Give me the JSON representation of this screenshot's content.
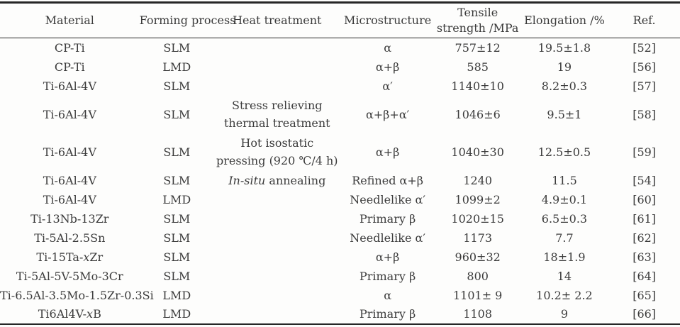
{
  "table": {
    "column_keys": [
      "material",
      "forming-process",
      "heat-treatment",
      "microstructure",
      "tensile-strength",
      "elongation",
      "ref"
    ],
    "headers": [
      "Material",
      "Forming process",
      "Heat treatment",
      "Microstructure",
      "Tensile\nstrength /MPa",
      "Elongation /%",
      "Ref."
    ],
    "rows": [
      {
        "material": "CP-Ti",
        "forming_process": "SLM",
        "heat_treatment": "",
        "microstructure": "α",
        "tensile_strength_mpa": "757±12",
        "elongation_pct": "19.5±1.8",
        "ref": "[52]",
        "tall": false
      },
      {
        "material": "CP-Ti",
        "forming_process": "LMD",
        "heat_treatment": "",
        "microstructure": "α+β",
        "tensile_strength_mpa": "585",
        "elongation_pct": "19",
        "ref": "[56]",
        "tall": false
      },
      {
        "material": "Ti-6Al-4V",
        "forming_process": "SLM",
        "heat_treatment": "",
        "microstructure": "α′",
        "tensile_strength_mpa": "1140±10",
        "elongation_pct": "8.2±0.3",
        "ref": "[57]",
        "tall": false
      },
      {
        "material": "Ti-6Al-4V",
        "forming_process": "SLM",
        "heat_treatment": "Stress relieving\nthermal treatment",
        "microstructure": "α+β+α′",
        "tensile_strength_mpa": "1046±6",
        "elongation_pct": "9.5±1",
        "ref": "[58]",
        "tall": true
      },
      {
        "material": "Ti-6Al-4V",
        "forming_process": "SLM",
        "heat_treatment": "Hot isostatic\npressing (920 ℃/4 h)",
        "microstructure": "α+β",
        "tensile_strength_mpa": "1040±30",
        "elongation_pct": "12.5±0.5",
        "ref": "[59]",
        "tall": true
      },
      {
        "material": "Ti-6Al-4V",
        "forming_process": "SLM",
        "heat_treatment": "*In-situ* annealing",
        "microstructure": "Refined α+β",
        "tensile_strength_mpa": "1240",
        "elongation_pct": "11.5",
        "ref": "[54]",
        "tall": false
      },
      {
        "material": "Ti-6Al-4V",
        "forming_process": "LMD",
        "heat_treatment": "",
        "microstructure": "Needlelike α′",
        "tensile_strength_mpa": "1099±2",
        "elongation_pct": "4.9±0.1",
        "ref": "[60]",
        "tall": false
      },
      {
        "material": "Ti-13Nb-13Zr",
        "forming_process": "SLM",
        "heat_treatment": "",
        "microstructure": "Primary β",
        "tensile_strength_mpa": "1020±15",
        "elongation_pct": "6.5±0.3",
        "ref": "[61]",
        "tall": false
      },
      {
        "material": "Ti-5Al-2.5Sn",
        "forming_process": "SLM",
        "heat_treatment": "",
        "microstructure": "Needlelike α′",
        "tensile_strength_mpa": "1173",
        "elongation_pct": "7.7",
        "ref": "[62]",
        "tall": false
      },
      {
        "material": "Ti-15Ta-*x*Zr",
        "forming_process": "SLM",
        "heat_treatment": "",
        "microstructure": "α+β",
        "tensile_strength_mpa": "960±32",
        "elongation_pct": "18±1.9",
        "ref": "[63]",
        "tall": false
      },
      {
        "material": "Ti-5Al-5V-5Mo-3Cr",
        "forming_process": "SLM",
        "heat_treatment": "",
        "microstructure": "Primary β",
        "tensile_strength_mpa": "800",
        "elongation_pct": "14",
        "ref": "[64]",
        "tall": false
      },
      {
        "material": "Ti-6.5Al-3.5Mo-1.5Zr-0.3Si",
        "forming_process": "LMD",
        "heat_treatment": "",
        "microstructure": "α",
        "tensile_strength_mpa": "1101± 9",
        "elongation_pct": "10.2± 2.2",
        "ref": "[65]",
        "tall": false
      },
      {
        "material": "Ti6Al4V-*x*B",
        "forming_process": "LMD",
        "heat_treatment": "",
        "microstructure": "Primary β",
        "tensile_strength_mpa": "1108",
        "elongation_pct": "9",
        "ref": "[66]",
        "tall": false
      }
    ],
    "colors": {
      "text": "#3b3b3b",
      "rule": "#262626",
      "background": "#fdfdfc"
    }
  }
}
